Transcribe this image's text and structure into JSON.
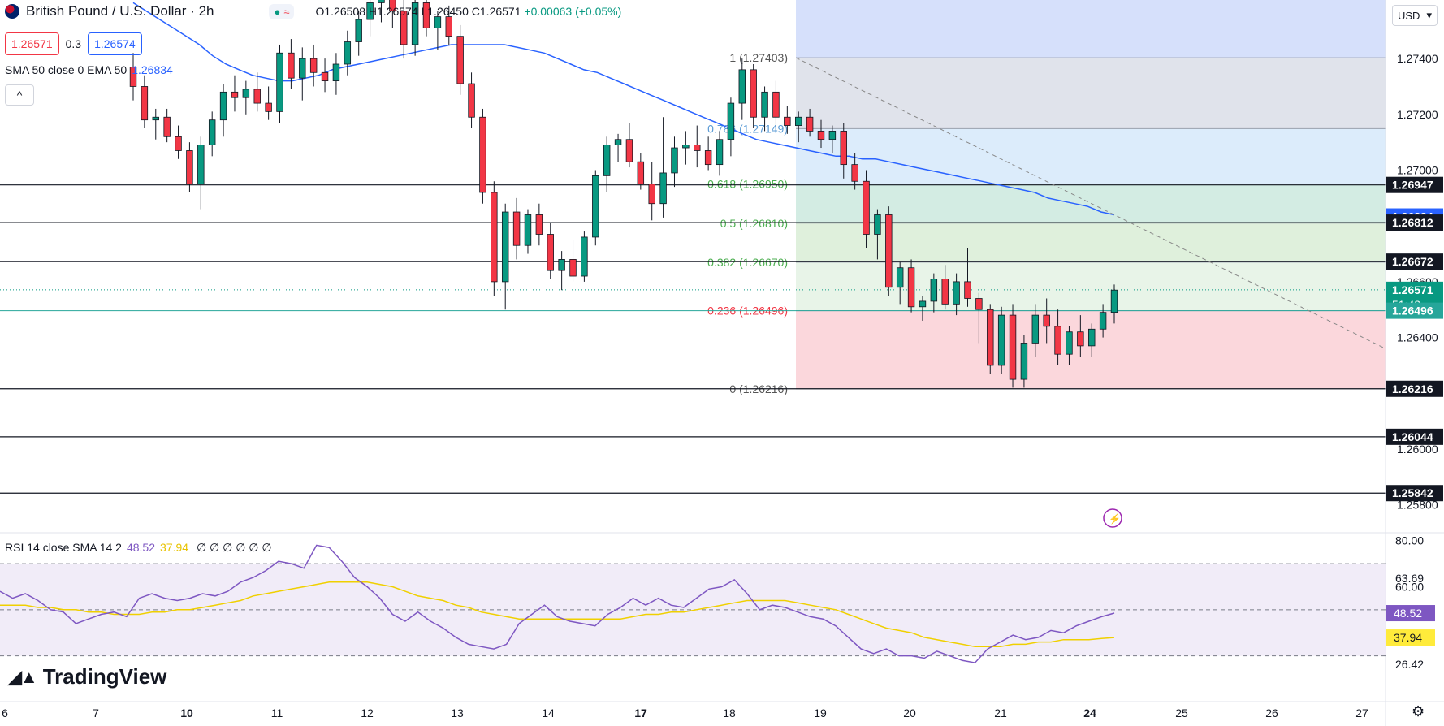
{
  "header": {
    "symbol_title": "British Pound / U.S. Dollar · 2h",
    "ohlc": {
      "o": "O1.26508",
      "h": "H1.26574",
      "l": "L1.26450",
      "c": "C1.26571",
      "chg": "+0.00063 (+0.05%)"
    },
    "bid": "1.26571",
    "spread": "0.3",
    "ask": "1.26574",
    "sma_label": "SMA 50 close 0 EMA 50",
    "sma_value": "1.26834",
    "chevron": "^",
    "currency": "USD"
  },
  "rsi_legend": {
    "label": "RSI 14 close SMA 14 2",
    "rsi": "48.52",
    "sma": "37.94",
    "placeholders": "∅ ∅ ∅ ∅ ∅ ∅"
  },
  "brand": {
    "name": "TradingView"
  },
  "colors": {
    "up": "#089981",
    "down": "#f23645",
    "ema": "#2962ff",
    "rsi": "#7e57c2",
    "rsi_ma": "#f0d000",
    "fib_1": "#d6e0fb",
    "fib_786": "#e0e3eb",
    "fib_618": "#dcecfb",
    "fib_5": "#d3ece3",
    "fib_382": "#dff0dc",
    "fib_236": "#e8f4e8",
    "fib_0": "#fbd7dc"
  },
  "chart_data": [
    {
      "type": "candlestick",
      "title": "British Pound / U.S. Dollar · 2h",
      "ylim": [
        1.257,
        1.2761
      ],
      "x_ticks": [
        "6",
        "7",
        "10",
        "11",
        "12",
        "13",
        "14",
        "17",
        "18",
        "19",
        "20",
        "21",
        "24",
        "25",
        "26",
        "27"
      ],
      "y_ticks": [
        "1.27400",
        "1.27200",
        "1.27000",
        "1.26600",
        "1.26400",
        "1.26000",
        "1.25800"
      ],
      "horizontal_levels": [
        1.26947,
        1.26812,
        1.26672,
        1.26216,
        1.26044,
        1.25842
      ],
      "right_labels": [
        {
          "value": 1.26947,
          "text": "1.26947",
          "kind": "level"
        },
        {
          "value": 1.26834,
          "text": "1.26834",
          "kind": "ema"
        },
        {
          "value": 1.26812,
          "text": "1.26812",
          "kind": "level"
        },
        {
          "value": 1.26672,
          "text": "1.26672",
          "kind": "level"
        },
        {
          "value": 1.26571,
          "text": "1.26571",
          "kind": "price",
          "sub": "51:48"
        },
        {
          "value": 1.26496,
          "text": "1.26496",
          "kind": "fib"
        },
        {
          "value": 1.26216,
          "text": "1.26216",
          "kind": "level"
        },
        {
          "value": 1.26044,
          "text": "1.26044",
          "kind": "level"
        },
        {
          "value": 1.25842,
          "text": "1.25842",
          "kind": "level"
        }
      ],
      "fibonacci": [
        {
          "ratio": "1",
          "value": 1.27403,
          "label": "1 (1.27403)"
        },
        {
          "ratio": "0.786",
          "value": 1.27149,
          "label": "0.786 (1.27149)"
        },
        {
          "ratio": "0.618",
          "value": 1.2695,
          "label": "0.618 (1.26950)"
        },
        {
          "ratio": "0.5",
          "value": 1.2681,
          "label": "0.5 (1.26810)"
        },
        {
          "ratio": "0.382",
          "value": 1.2667,
          "label": "0.382 (1.26670)"
        },
        {
          "ratio": "0.236",
          "value": 1.26496,
          "label": "0.236 (1.26496)"
        },
        {
          "ratio": "0",
          "value": 1.26216,
          "label": "0 (1.26216)"
        }
      ],
      "candles": [
        [
          1.2737,
          1.2742,
          1.2725,
          1.273
        ],
        [
          1.273,
          1.2734,
          1.2715,
          1.2718
        ],
        [
          1.2718,
          1.2722,
          1.2711,
          1.2719
        ],
        [
          1.2719,
          1.2722,
          1.271,
          1.2712
        ],
        [
          1.2712,
          1.2716,
          1.2704,
          1.2707
        ],
        [
          1.2707,
          1.271,
          1.2692,
          1.2695
        ],
        [
          1.2695,
          1.2712,
          1.2686,
          1.2709
        ],
        [
          1.2709,
          1.2721,
          1.2705,
          1.2718
        ],
        [
          1.2718,
          1.2731,
          1.2712,
          1.2728
        ],
        [
          1.2728,
          1.2734,
          1.2721,
          1.2726
        ],
        [
          1.2726,
          1.2732,
          1.272,
          1.2729
        ],
        [
          1.2729,
          1.2735,
          1.2721,
          1.2724
        ],
        [
          1.2724,
          1.273,
          1.2718,
          1.2721
        ],
        [
          1.2721,
          1.2745,
          1.2717,
          1.2742
        ],
        [
          1.2742,
          1.2747,
          1.2729,
          1.2733
        ],
        [
          1.2733,
          1.2744,
          1.2725,
          1.274
        ],
        [
          1.274,
          1.2745,
          1.273,
          1.2735
        ],
        [
          1.2735,
          1.274,
          1.2728,
          1.2732
        ],
        [
          1.2732,
          1.2742,
          1.2727,
          1.2738
        ],
        [
          1.2738,
          1.275,
          1.2734,
          1.2746
        ],
        [
          1.2746,
          1.2757,
          1.2741,
          1.2754
        ],
        [
          1.2754,
          1.2763,
          1.2748,
          1.276
        ],
        [
          1.276,
          1.2765,
          1.2753,
          1.2762
        ],
        [
          1.2762,
          1.2768,
          1.2751,
          1.2757
        ],
        [
          1.2757,
          1.2763,
          1.274,
          1.2745
        ],
        [
          1.2745,
          1.2762,
          1.2741,
          1.276
        ],
        [
          1.276,
          1.2765,
          1.2748,
          1.2751
        ],
        [
          1.2751,
          1.2757,
          1.2743,
          1.2755
        ],
        [
          1.2755,
          1.2759,
          1.2745,
          1.2748
        ],
        [
          1.2748,
          1.2752,
          1.2727,
          1.2731
        ],
        [
          1.2731,
          1.2735,
          1.2715,
          1.2719
        ],
        [
          1.2719,
          1.2722,
          1.2688,
          1.2692
        ],
        [
          1.2692,
          1.2696,
          1.2655,
          1.266
        ],
        [
          1.266,
          1.2688,
          1.265,
          1.2685
        ],
        [
          1.2685,
          1.269,
          1.2668,
          1.2673
        ],
        [
          1.2673,
          1.2686,
          1.267,
          1.2684
        ],
        [
          1.2684,
          1.2688,
          1.2673,
          1.2677
        ],
        [
          1.2677,
          1.2681,
          1.2661,
          1.2664
        ],
        [
          1.2664,
          1.2671,
          1.2657,
          1.2668
        ],
        [
          1.2668,
          1.2675,
          1.266,
          1.2662
        ],
        [
          1.2662,
          1.2678,
          1.266,
          1.2676
        ],
        [
          1.2676,
          1.27,
          1.2673,
          1.2698
        ],
        [
          1.2698,
          1.2712,
          1.2692,
          1.2709
        ],
        [
          1.2709,
          1.2713,
          1.2703,
          1.2711
        ],
        [
          1.2711,
          1.2717,
          1.2701,
          1.2703
        ],
        [
          1.2703,
          1.2706,
          1.2693,
          1.2695
        ],
        [
          1.2695,
          1.2703,
          1.2682,
          1.2688
        ],
        [
          1.2688,
          1.2719,
          1.2683,
          1.2699
        ],
        [
          1.2699,
          1.2712,
          1.2694,
          1.2708
        ],
        [
          1.2708,
          1.2714,
          1.2702,
          1.2709
        ],
        [
          1.2709,
          1.2716,
          1.2701,
          1.2707
        ],
        [
          1.2707,
          1.2712,
          1.27,
          1.2702
        ],
        [
          1.2702,
          1.2714,
          1.2698,
          1.2711
        ],
        [
          1.2711,
          1.2726,
          1.2705,
          1.2724
        ],
        [
          1.2724,
          1.274,
          1.2718,
          1.2736
        ],
        [
          1.2736,
          1.2738,
          1.2715,
          1.2719
        ],
        [
          1.2719,
          1.273,
          1.2714,
          1.2728
        ],
        [
          1.2728,
          1.2732,
          1.2716,
          1.2719
        ],
        [
          1.2719,
          1.2723,
          1.2713,
          1.2716
        ],
        [
          1.2716,
          1.2721,
          1.271,
          1.2719
        ],
        [
          1.2719,
          1.2722,
          1.2712,
          1.2714
        ],
        [
          1.2714,
          1.2718,
          1.2708,
          1.2711
        ],
        [
          1.2711,
          1.2716,
          1.2706,
          1.2714
        ],
        [
          1.2714,
          1.2717,
          1.2697,
          1.2702
        ],
        [
          1.2702,
          1.2706,
          1.2693,
          1.2696
        ],
        [
          1.2696,
          1.27,
          1.2672,
          1.2677
        ],
        [
          1.2677,
          1.2686,
          1.2668,
          1.2684
        ],
        [
          1.2684,
          1.2687,
          1.2655,
          1.2658
        ],
        [
          1.2658,
          1.2667,
          1.2652,
          1.2665
        ],
        [
          1.2665,
          1.2668,
          1.2649,
          1.2651
        ],
        [
          1.2651,
          1.2655,
          1.2646,
          1.2653
        ],
        [
          1.2653,
          1.2663,
          1.2649,
          1.2661
        ],
        [
          1.2661,
          1.2666,
          1.265,
          1.2652
        ],
        [
          1.2652,
          1.2663,
          1.2648,
          1.266
        ],
        [
          1.266,
          1.2672,
          1.2651,
          1.2654
        ],
        [
          1.2654,
          1.2656,
          1.2638,
          1.265
        ],
        [
          1.265,
          1.2652,
          1.2627,
          1.263
        ],
        [
          1.263,
          1.2651,
          1.2627,
          1.2648
        ],
        [
          1.2648,
          1.2652,
          1.2622,
          1.2625
        ],
        [
          1.2625,
          1.2641,
          1.2622,
          1.2638
        ],
        [
          1.2638,
          1.2652,
          1.2633,
          1.2648
        ],
        [
          1.2648,
          1.2654,
          1.2638,
          1.2644
        ],
        [
          1.2644,
          1.265,
          1.263,
          1.2634
        ],
        [
          1.2634,
          1.2644,
          1.263,
          1.2642
        ],
        [
          1.2642,
          1.2648,
          1.2633,
          1.2637
        ],
        [
          1.2637,
          1.2645,
          1.2633,
          1.2643
        ],
        [
          1.2643,
          1.2652,
          1.264,
          1.2649
        ],
        [
          1.2649,
          1.2659,
          1.2645,
          1.2657
        ]
      ],
      "ema50": [
        1.276,
        1.2757,
        1.2754,
        1.2751,
        1.2748,
        1.2745,
        1.2741,
        1.2738,
        1.2736,
        1.2734,
        1.2733,
        1.2732,
        1.2732,
        1.2733,
        1.2734,
        1.2736,
        1.2737,
        1.2738,
        1.2739,
        1.274,
        1.2741,
        1.2742,
        1.2743,
        1.2744,
        1.2745,
        1.2745,
        1.2745,
        1.2745,
        1.2745,
        1.2744,
        1.2743,
        1.2742,
        1.274,
        1.2738,
        1.2736,
        1.2735,
        1.2733,
        1.2731,
        1.2729,
        1.2727,
        1.2725,
        1.2723,
        1.2721,
        1.2719,
        1.2717,
        1.2715,
        1.2713,
        1.2711,
        1.271,
        1.2709,
        1.2708,
        1.2707,
        1.2706,
        1.2705,
        1.2705,
        1.2704,
        1.2704,
        1.2703,
        1.2702,
        1.2701,
        1.27,
        1.2699,
        1.2698,
        1.2697,
        1.2696,
        1.2695,
        1.2694,
        1.2693,
        1.2692,
        1.269,
        1.2689,
        1.2688,
        1.2687,
        1.2685,
        1.2684
      ],
      "trendline": [
        [
          1.27403,
          0
        ],
        [
          1.2625,
          1
        ]
      ],
      "price_line": 1.26571
    },
    {
      "type": "line",
      "title": "RSI 14 close SMA 14 2",
      "ylim": [
        20,
        82
      ],
      "y_ticks": [
        "80.00",
        "63.69",
        "60.00",
        "26.42"
      ],
      "bands": [
        70,
        50,
        30
      ],
      "right_labels": [
        {
          "value": 48.52,
          "text": "48.52",
          "kind": "rsi"
        },
        {
          "value": 37.94,
          "text": "37.94",
          "kind": "rsima"
        }
      ],
      "series": [
        {
          "name": "RSI",
          "values": [
            58,
            55,
            57,
            54,
            50,
            49,
            44,
            46,
            48,
            49,
            47,
            55,
            57,
            55,
            54,
            55,
            57,
            56,
            58,
            62,
            64,
            67,
            71,
            70,
            68,
            78,
            77,
            71,
            64,
            60,
            55,
            48,
            45,
            49,
            45,
            42,
            38,
            35,
            34,
            33,
            35,
            44,
            48,
            52,
            47,
            45,
            44,
            43,
            48,
            51,
            55,
            52,
            55,
            52,
            51,
            55,
            59,
            60,
            63,
            57,
            50,
            52,
            51,
            49,
            47,
            46,
            43,
            38,
            33,
            31,
            33,
            30,
            30,
            29,
            32,
            30,
            28,
            27,
            33,
            36,
            39,
            37,
            38,
            41,
            40,
            43,
            45,
            47,
            48.52
          ]
        },
        {
          "name": "RSI SMA",
          "values": [
            52,
            52,
            52,
            51,
            51,
            50,
            50,
            49,
            49,
            48,
            48,
            48,
            49,
            49,
            50,
            50,
            51,
            52,
            53,
            54,
            56,
            57,
            58,
            59,
            60,
            61,
            62,
            62,
            62,
            62,
            61,
            60,
            58,
            56,
            55,
            54,
            52,
            51,
            49,
            48,
            47,
            46,
            46,
            46,
            46,
            46,
            46,
            46,
            46,
            46,
            47,
            48,
            48,
            49,
            49,
            50,
            51,
            52,
            53,
            54,
            54,
            54,
            54,
            53,
            52,
            51,
            50,
            48,
            46,
            44,
            42,
            41,
            40,
            38,
            37,
            36,
            35,
            34,
            34,
            34,
            35,
            35,
            36,
            36,
            37,
            37,
            37,
            37.5,
            37.94
          ]
        }
      ]
    }
  ]
}
